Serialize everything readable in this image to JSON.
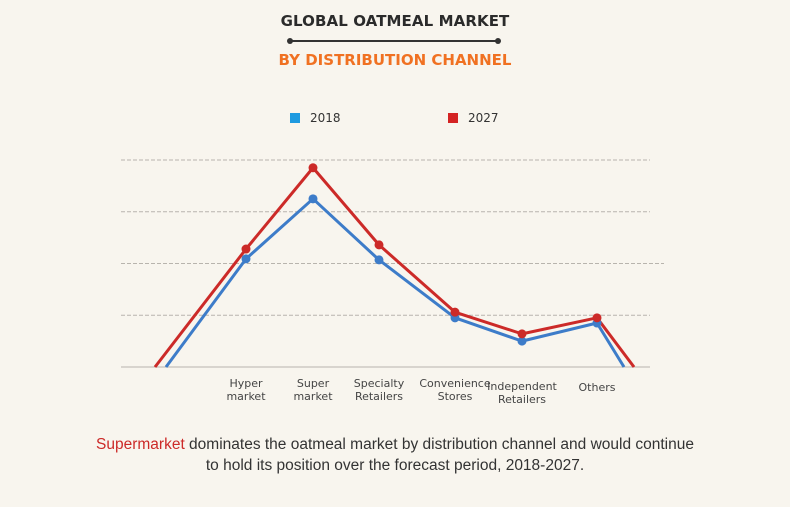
{
  "header": {
    "title": "GLOBAL OATMEAL MARKET",
    "subtitle": "BY DISTRIBUTION CHANNEL"
  },
  "colors": {
    "background": "#f8f5ee",
    "title": "#2b2b2b",
    "subtitle": "#f07122",
    "series_2018": "#3d7cc9",
    "series_2027": "#cc2a28",
    "legend_2018": "#1e9ae0",
    "legend_2027": "#d42323",
    "gridline": "#b8b4ad",
    "highlight": "#cc2a28"
  },
  "chart_data": {
    "type": "line",
    "title": "GLOBAL OATMEAL MARKET",
    "subtitle": "BY DISTRIBUTION CHANNEL",
    "xlabel": "",
    "ylabel": "",
    "y_units": "relative (no y-axis values shown; one unit = one gridline interval)",
    "ylim": [
      0,
      4
    ],
    "grid": true,
    "legend_position": "top-center",
    "categories": [
      "Hyper market",
      "Super market",
      "Specialty Retailers",
      "Convenience Stores",
      "Independent Retailers",
      "Others"
    ],
    "category_labels": [
      [
        "Hyper",
        "market"
      ],
      [
        "Super",
        "market"
      ],
      [
        "Specialty",
        "Retailers"
      ],
      [
        "Convenience",
        "Stores"
      ],
      [
        "Independent",
        "Retailers"
      ],
      [
        "Others"
      ]
    ],
    "series": [
      {
        "name": "2018",
        "values": [
          2.09,
          3.25,
          2.07,
          0.95,
          0.5,
          0.85
        ]
      },
      {
        "name": "2027",
        "values": [
          2.28,
          3.85,
          2.36,
          1.06,
          0.64,
          0.95
        ]
      }
    ]
  },
  "legend": {
    "items": [
      {
        "label": "2018"
      },
      {
        "label": "2027"
      }
    ]
  },
  "caption": {
    "highlight": "Supermarket",
    "line1_rest": " dominates the oatmeal market by distribution channel and would continue",
    "line2": "to hold its position over the forecast period, 2018-2027."
  }
}
